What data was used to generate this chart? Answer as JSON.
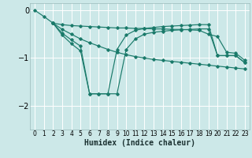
{
  "xlabel": "Humidex (Indice chaleur)",
  "bg_color": "#cce8e8",
  "grid_color": "#ffffff",
  "line_color": "#1a7a6a",
  "xlim": [
    -0.5,
    23.5
  ],
  "ylim": [
    -2.5,
    0.15
  ],
  "yticks": [
    0,
    -1,
    -2
  ],
  "xticks": [
    0,
    1,
    2,
    3,
    4,
    5,
    6,
    7,
    8,
    9,
    10,
    11,
    12,
    13,
    14,
    15,
    16,
    17,
    18,
    19,
    20,
    21,
    22,
    23
  ],
  "series": [
    {
      "x": [
        0,
        1,
        2,
        3,
        4,
        5,
        6,
        7,
        8,
        9,
        10,
        11,
        12,
        13,
        14,
        15,
        16,
        17,
        18,
        19,
        20,
        21,
        22,
        23
      ],
      "y": [
        0.0,
        -0.13,
        -0.27,
        -0.4,
        -0.5,
        -0.6,
        -0.68,
        -0.75,
        -0.82,
        -0.88,
        -0.93,
        -0.97,
        -1.0,
        -1.03,
        -1.05,
        -1.07,
        -1.09,
        -1.11,
        -1.13,
        -1.15,
        -1.17,
        -1.19,
        -1.21,
        -1.23
      ]
    },
    {
      "x": [
        2,
        3,
        4,
        5,
        6,
        7,
        8,
        9,
        10,
        11,
        12,
        13,
        14,
        15,
        16,
        17,
        18,
        19,
        20,
        21,
        22,
        23
      ],
      "y": [
        -0.27,
        -0.3,
        -0.32,
        -0.33,
        -0.34,
        -0.35,
        -0.36,
        -0.37,
        -0.37,
        -0.38,
        -0.38,
        -0.39,
        -0.39,
        -0.4,
        -0.4,
        -0.41,
        -0.42,
        -0.5,
        -0.55,
        -0.88,
        -0.9,
        -1.05
      ]
    },
    {
      "x": [
        2,
        3,
        4,
        5,
        6,
        7,
        8,
        9,
        10,
        11,
        12,
        13,
        14,
        15,
        16,
        17,
        18,
        19,
        20,
        21,
        22,
        23
      ],
      "y": [
        -0.27,
        -0.48,
        -0.62,
        -0.75,
        -1.75,
        -1.75,
        -1.75,
        -1.75,
        -0.82,
        -0.6,
        -0.5,
        -0.46,
        -0.44,
        -0.42,
        -0.41,
        -0.4,
        -0.39,
        -0.39,
        -0.95,
        -0.95,
        -0.95,
        -1.1
      ]
    },
    {
      "x": [
        2,
        3,
        4,
        5,
        6,
        7,
        8,
        9,
        10,
        11,
        12,
        13,
        14,
        15,
        16,
        17,
        18,
        19,
        20,
        21,
        22,
        23
      ],
      "y": [
        -0.27,
        -0.52,
        -0.7,
        -0.85,
        -1.75,
        -1.75,
        -1.75,
        -0.82,
        -0.52,
        -0.42,
        -0.38,
        -0.36,
        -0.34,
        -0.33,
        -0.32,
        -0.31,
        -0.3,
        -0.3,
        -0.95,
        -0.95,
        -0.95,
        -1.1
      ]
    }
  ]
}
